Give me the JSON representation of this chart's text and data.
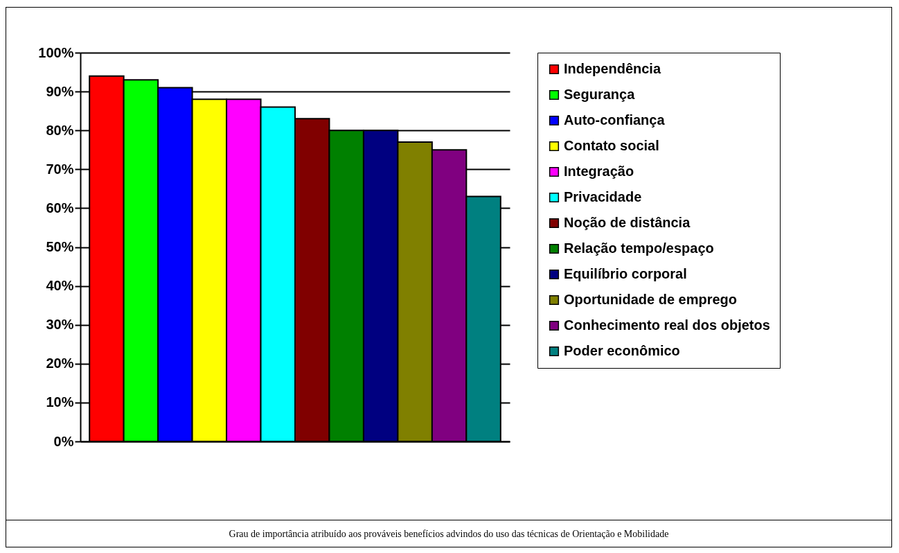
{
  "chart_data": {
    "type": "bar",
    "annotations": [
      "Grau de importância atribuído aos prováveis benefícios advindos do uso das técnicas de Orientação e Mobilidade"
    ],
    "categories": [
      null
    ],
    "series": [
      {
        "name": "Independência",
        "color": "#ff0000",
        "values": [
          94
        ]
      },
      {
        "name": "Segurança",
        "color": "#00ff00",
        "values": [
          93
        ]
      },
      {
        "name": "Auto-confiança",
        "color": "#0000ff",
        "values": [
          91
        ]
      },
      {
        "name": "Contato social",
        "color": "#ffff00",
        "values": [
          88
        ]
      },
      {
        "name": "Integração",
        "color": "#ff00ff",
        "values": [
          88
        ]
      },
      {
        "name": "Privacidade",
        "color": "#00ffff",
        "values": [
          86
        ]
      },
      {
        "name": "Noção de distância",
        "color": "#800000",
        "values": [
          83
        ]
      },
      {
        "name": "Relação tempo/espaço",
        "color": "#008000",
        "values": [
          80
        ]
      },
      {
        "name": "Equilíbrio corporal",
        "color": "#000080",
        "values": [
          80
        ]
      },
      {
        "name": "Oportunidade de emprego",
        "color": "#808000",
        "values": [
          77
        ]
      },
      {
        "name": "Conhecimento real dos objetos",
        "color": "#800080",
        "values": [
          75
        ]
      },
      {
        "name": "Poder econômico",
        "color": "#008080",
        "values": [
          63
        ]
      }
    ],
    "ylim": [
      0,
      100
    ],
    "yticks": [
      {
        "value": 0,
        "label": "0%"
      },
      {
        "value": 10,
        "label": "10%"
      },
      {
        "value": 20,
        "label": "20%"
      },
      {
        "value": 30,
        "label": "30%"
      },
      {
        "value": 40,
        "label": "40%"
      },
      {
        "value": 50,
        "label": "50%"
      },
      {
        "value": 60,
        "label": "60%"
      },
      {
        "value": 70,
        "label": "70%"
      },
      {
        "value": 80,
        "label": "80%"
      },
      {
        "value": 90,
        "label": "90%"
      },
      {
        "value": 100,
        "label": "100%"
      }
    ],
    "grid": "y",
    "legend": "right"
  }
}
